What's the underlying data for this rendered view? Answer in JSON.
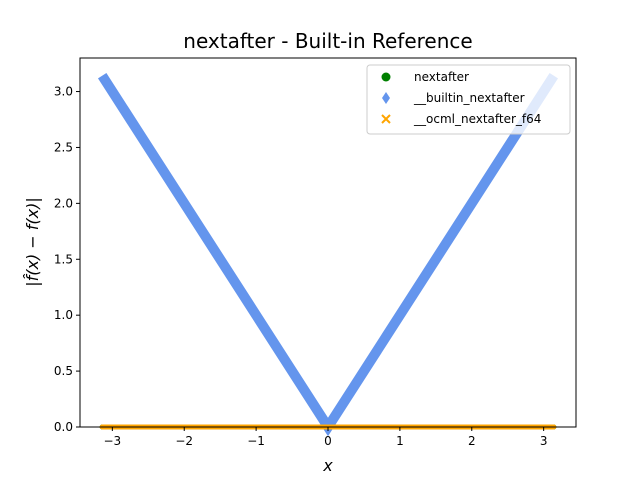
{
  "chart_data": {
    "type": "scatter",
    "title": "nextafter - Built-in Reference",
    "xlabel": "x",
    "ylabel": "|f̂(x) − f(x)|",
    "xlim": [
      -3.45,
      3.45
    ],
    "ylim": [
      0,
      3.3
    ],
    "x_ticks": [
      -3,
      -2,
      -1,
      0,
      1,
      2,
      3
    ],
    "y_ticks": [
      0.0,
      0.5,
      1.0,
      1.5,
      2.0,
      2.5,
      3.0
    ],
    "grid": false,
    "legend_position": "top-right",
    "series": [
      {
        "name": "nextafter",
        "marker": "circle",
        "color": "#008000",
        "x_range": [
          -3.14159,
          3.14159
        ],
        "y": "0"
      },
      {
        "name": "__builtin_nextafter",
        "marker": "diamond",
        "color": "#6495ED",
        "x_range": [
          -3.14159,
          3.14159
        ],
        "y": "|x|"
      },
      {
        "name": "__ocml_nextafter_f64",
        "marker": "x",
        "color": "#FFA500",
        "x_range": [
          -3.14159,
          3.14159
        ],
        "y": "0"
      }
    ]
  }
}
